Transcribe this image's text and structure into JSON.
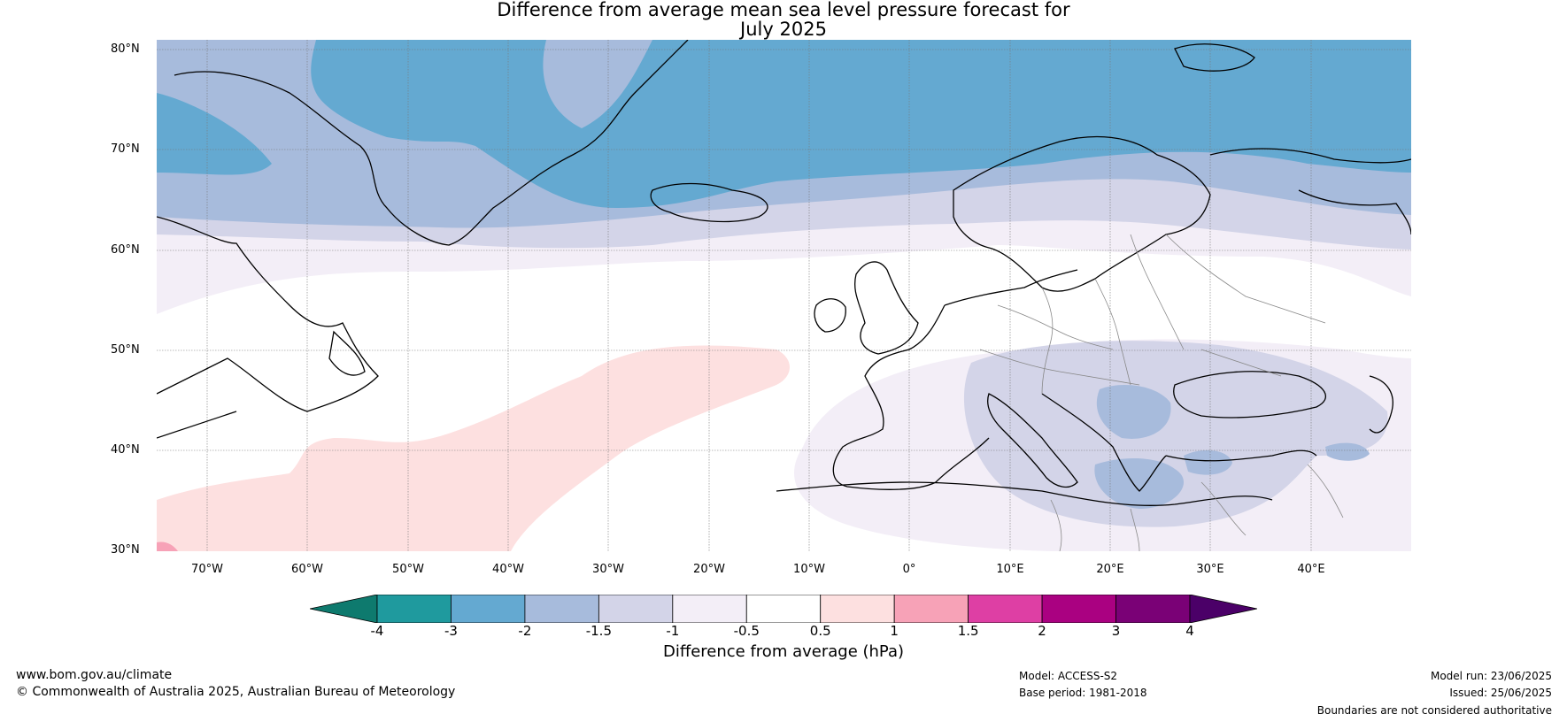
{
  "title": {
    "line1": "Difference from average mean sea level pressure forecast for",
    "line2": "July 2025"
  },
  "lat_labels": [
    "80°N",
    "70°N",
    "60°N",
    "50°N",
    "40°N",
    "30°N"
  ],
  "lon_labels": [
    "70°W",
    "60°W",
    "50°W",
    "40°W",
    "30°W",
    "20°W",
    "10°W",
    "0°",
    "10°E",
    "20°E",
    "30°E",
    "40°E"
  ],
  "colorbar": {
    "ticks": [
      "-4",
      "-3",
      "-2",
      "-1.5",
      "-1",
      "-0.5",
      "0.5",
      "1",
      "1.5",
      "2",
      "3",
      "4"
    ],
    "colors": [
      "#0e7a6e",
      "#1f9a9e",
      "#64a9d1",
      "#a7bbdc",
      "#d3d4e8",
      "#f3eef7",
      "#ffffff",
      "#fde0e0",
      "#f7a2b7",
      "#de3fa4",
      "#aa0181",
      "#7a0176",
      "#4b0068"
    ],
    "label": "Difference from average (hPa)"
  },
  "footer": {
    "website": "www.bom.gov.au/climate",
    "copyright": "© Commonwealth of Australia 2025, Australian Bureau of Meteorology",
    "model": "Model: ACCESS-S2",
    "base_period": "Base period: 1981-2018",
    "model_run": "Model run: 23/06/2025",
    "issued": "Issued: 25/06/2025",
    "disclaimer": "Boundaries are not considered authoritative"
  }
}
